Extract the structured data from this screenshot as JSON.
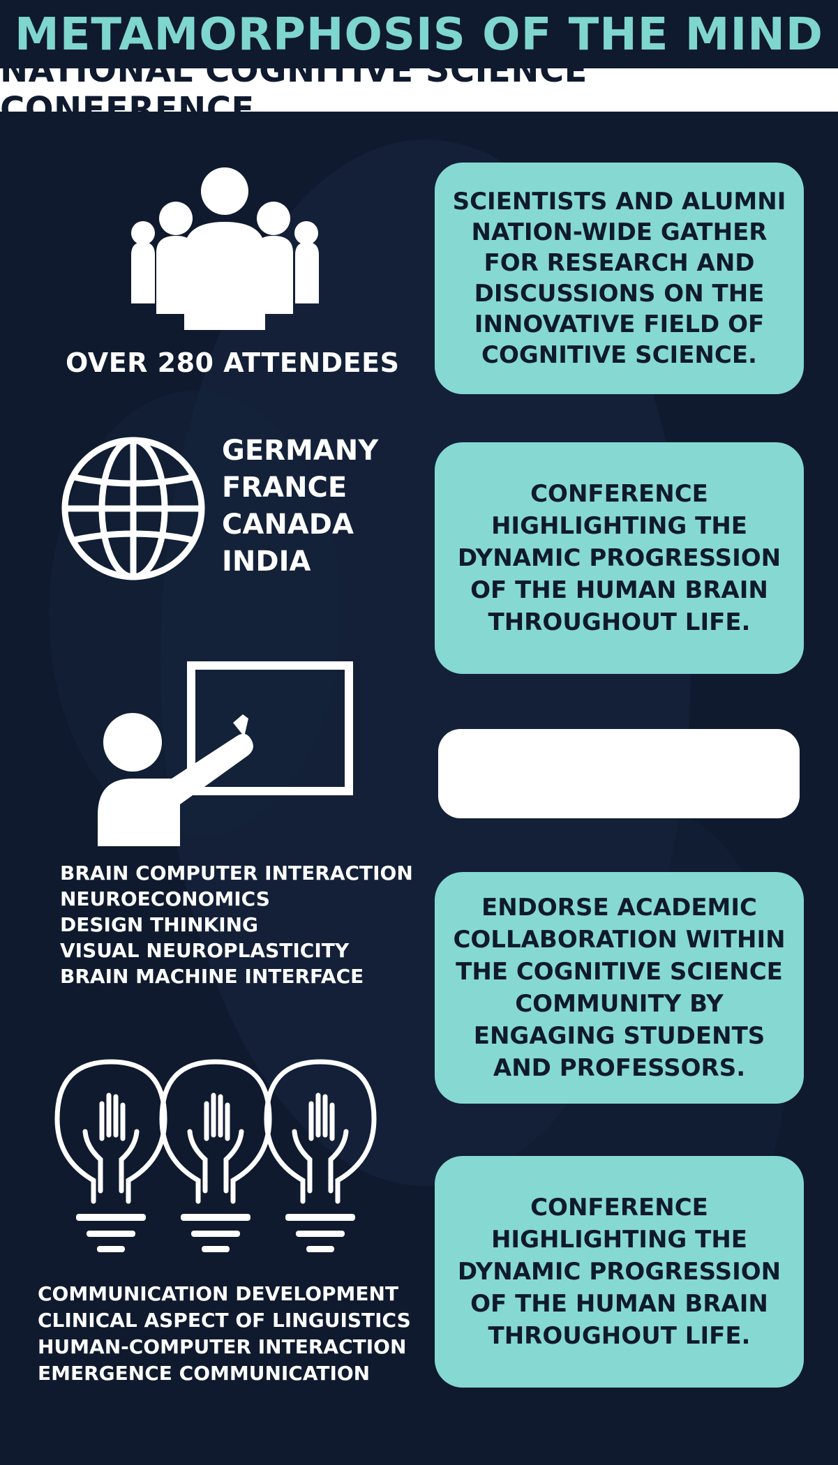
{
  "header": {
    "title": "METAMORPHOSIS OF THE MIND",
    "subtitle": "NATIONAL COGNITIVE SCIENCE CONFERENCE"
  },
  "section1": {
    "icon": "group-of-people-icon",
    "caption": "OVER 280 ATTENDEES",
    "card_text": "SCIENTISTS AND ALUMNI NATION-WIDE GATHER FOR RESEARCH AND DISCUSSIONS ON THE INNOVATIVE FIELD OF COGNITIVE SCIENCE."
  },
  "section2": {
    "icon": "globe-icon",
    "countries": [
      "GERMANY",
      "FRANCE",
      "CANADA",
      "INDIA"
    ],
    "card_text": "CONFERENCE HIGHLIGHTING THE DYNAMIC PROGRESSION OF THE HUMAN BRAIN THROUGHOUT LIFE."
  },
  "section3": {
    "icon": "presenter-at-board-icon",
    "topics": [
      "BRAIN COMPUTER INTERACTION",
      "NEUROECONOMICS",
      "DESIGN THINKING",
      "VISUAL NEUROPLASTICITY",
      "BRAIN MACHINE INTERFACE"
    ],
    "card_text": ""
  },
  "section4": {
    "card_text": "ENDORSE ACADEMIC COLLABORATION WITHIN THE COGNITIVE SCIENCE COMMUNITY BY ENGAGING STUDENTS AND PROFESSORS."
  },
  "section5": {
    "icon": "lightbulbs-with-hands-icon",
    "topics": [
      "COMMUNICATION DEVELOPMENT",
      "CLINICAL ASPECT OF LINGUISTICS",
      "HUMAN-COMPUTER INTERACTION",
      "EMERGENCE COMMUNICATION"
    ],
    "card_text": "CONFERENCE HIGHLIGHTING THE DYNAMIC PROGRESSION OF THE HUMAN BRAIN THROUGHOUT LIFE."
  },
  "colors": {
    "background": "#0f1a2e",
    "accent": "#7fd6cf",
    "card": "#86d9d2",
    "white": "#ffffff"
  }
}
